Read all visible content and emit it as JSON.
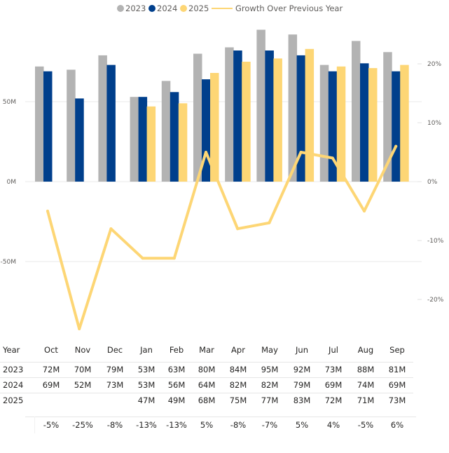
{
  "chart_data": {
    "type": "bar+line",
    "title": "",
    "legend": {
      "position": "top-center",
      "entries": [
        {
          "label": "2023",
          "type": "bar",
          "color": "#b3b3b3"
        },
        {
          "label": "2024",
          "type": "bar",
          "color": "#003f8c"
        },
        {
          "label": "2025",
          "type": "bar",
          "color": "#fdd675"
        },
        {
          "label": "Growth Over Previous Year",
          "type": "line",
          "color": "#fdd675"
        }
      ]
    },
    "categories": [
      "Oct",
      "Nov",
      "Dec",
      "Jan",
      "Feb",
      "Mar",
      "Apr",
      "May",
      "Jun",
      "Jul",
      "Aug",
      "Sep"
    ],
    "series": [
      {
        "name": "2023",
        "axis": "left",
        "values": [
          72,
          70,
          79,
          53,
          63,
          80,
          84,
          95,
          92,
          73,
          88,
          81
        ]
      },
      {
        "name": "2024",
        "axis": "left",
        "values": [
          69,
          52,
          73,
          53,
          56,
          64,
          82,
          82,
          79,
          69,
          74,
          69
        ]
      },
      {
        "name": "2025",
        "axis": "left",
        "values": [
          null,
          null,
          null,
          47,
          49,
          68,
          75,
          77,
          83,
          72,
          71,
          73
        ]
      },
      {
        "name": "Growth Over Previous Year",
        "axis": "right",
        "type": "line",
        "values": [
          -5,
          -25,
          -8,
          -13,
          -13,
          5,
          -8,
          -7,
          5,
          4,
          -5,
          6
        ]
      }
    ],
    "y_left": {
      "unit": "M",
      "ylim": [
        -95,
        100
      ],
      "ticks": [
        "50M",
        "0M",
        "-50M"
      ],
      "tick_values": [
        50,
        0,
        -50
      ]
    },
    "y_right": {
      "unit": "%",
      "ylim": [
        -29,
        30
      ],
      "ticks": [
        "20%",
        "10%",
        "0%",
        "-10%",
        "-20%"
      ],
      "tick_values": [
        20,
        10,
        0,
        -10,
        -20
      ]
    },
    "grid": true
  },
  "table": {
    "header": [
      "Year",
      "Oct",
      "Nov",
      "Dec",
      "Jan",
      "Feb",
      "Mar",
      "Apr",
      "May",
      "Jun",
      "Jul",
      "Aug",
      "Sep"
    ],
    "rows": [
      [
        "2023",
        "72M",
        "70M",
        "79M",
        "53M",
        "63M",
        "80M",
        "84M",
        "95M",
        "92M",
        "73M",
        "88M",
        "81M"
      ],
      [
        "2024",
        "69M",
        "52M",
        "73M",
        "53M",
        "56M",
        "64M",
        "82M",
        "82M",
        "79M",
        "69M",
        "74M",
        "69M"
      ],
      [
        "2025",
        "",
        "",
        "",
        "47M",
        "49M",
        "68M",
        "75M",
        "77M",
        "83M",
        "72M",
        "71M",
        "73M"
      ]
    ],
    "growth_row": [
      "",
      "-5%",
      "-25%",
      "-8%",
      "-13%",
      "-13%",
      "5%",
      "-8%",
      "-7%",
      "5%",
      "4%",
      "-5%",
      "6%"
    ]
  }
}
